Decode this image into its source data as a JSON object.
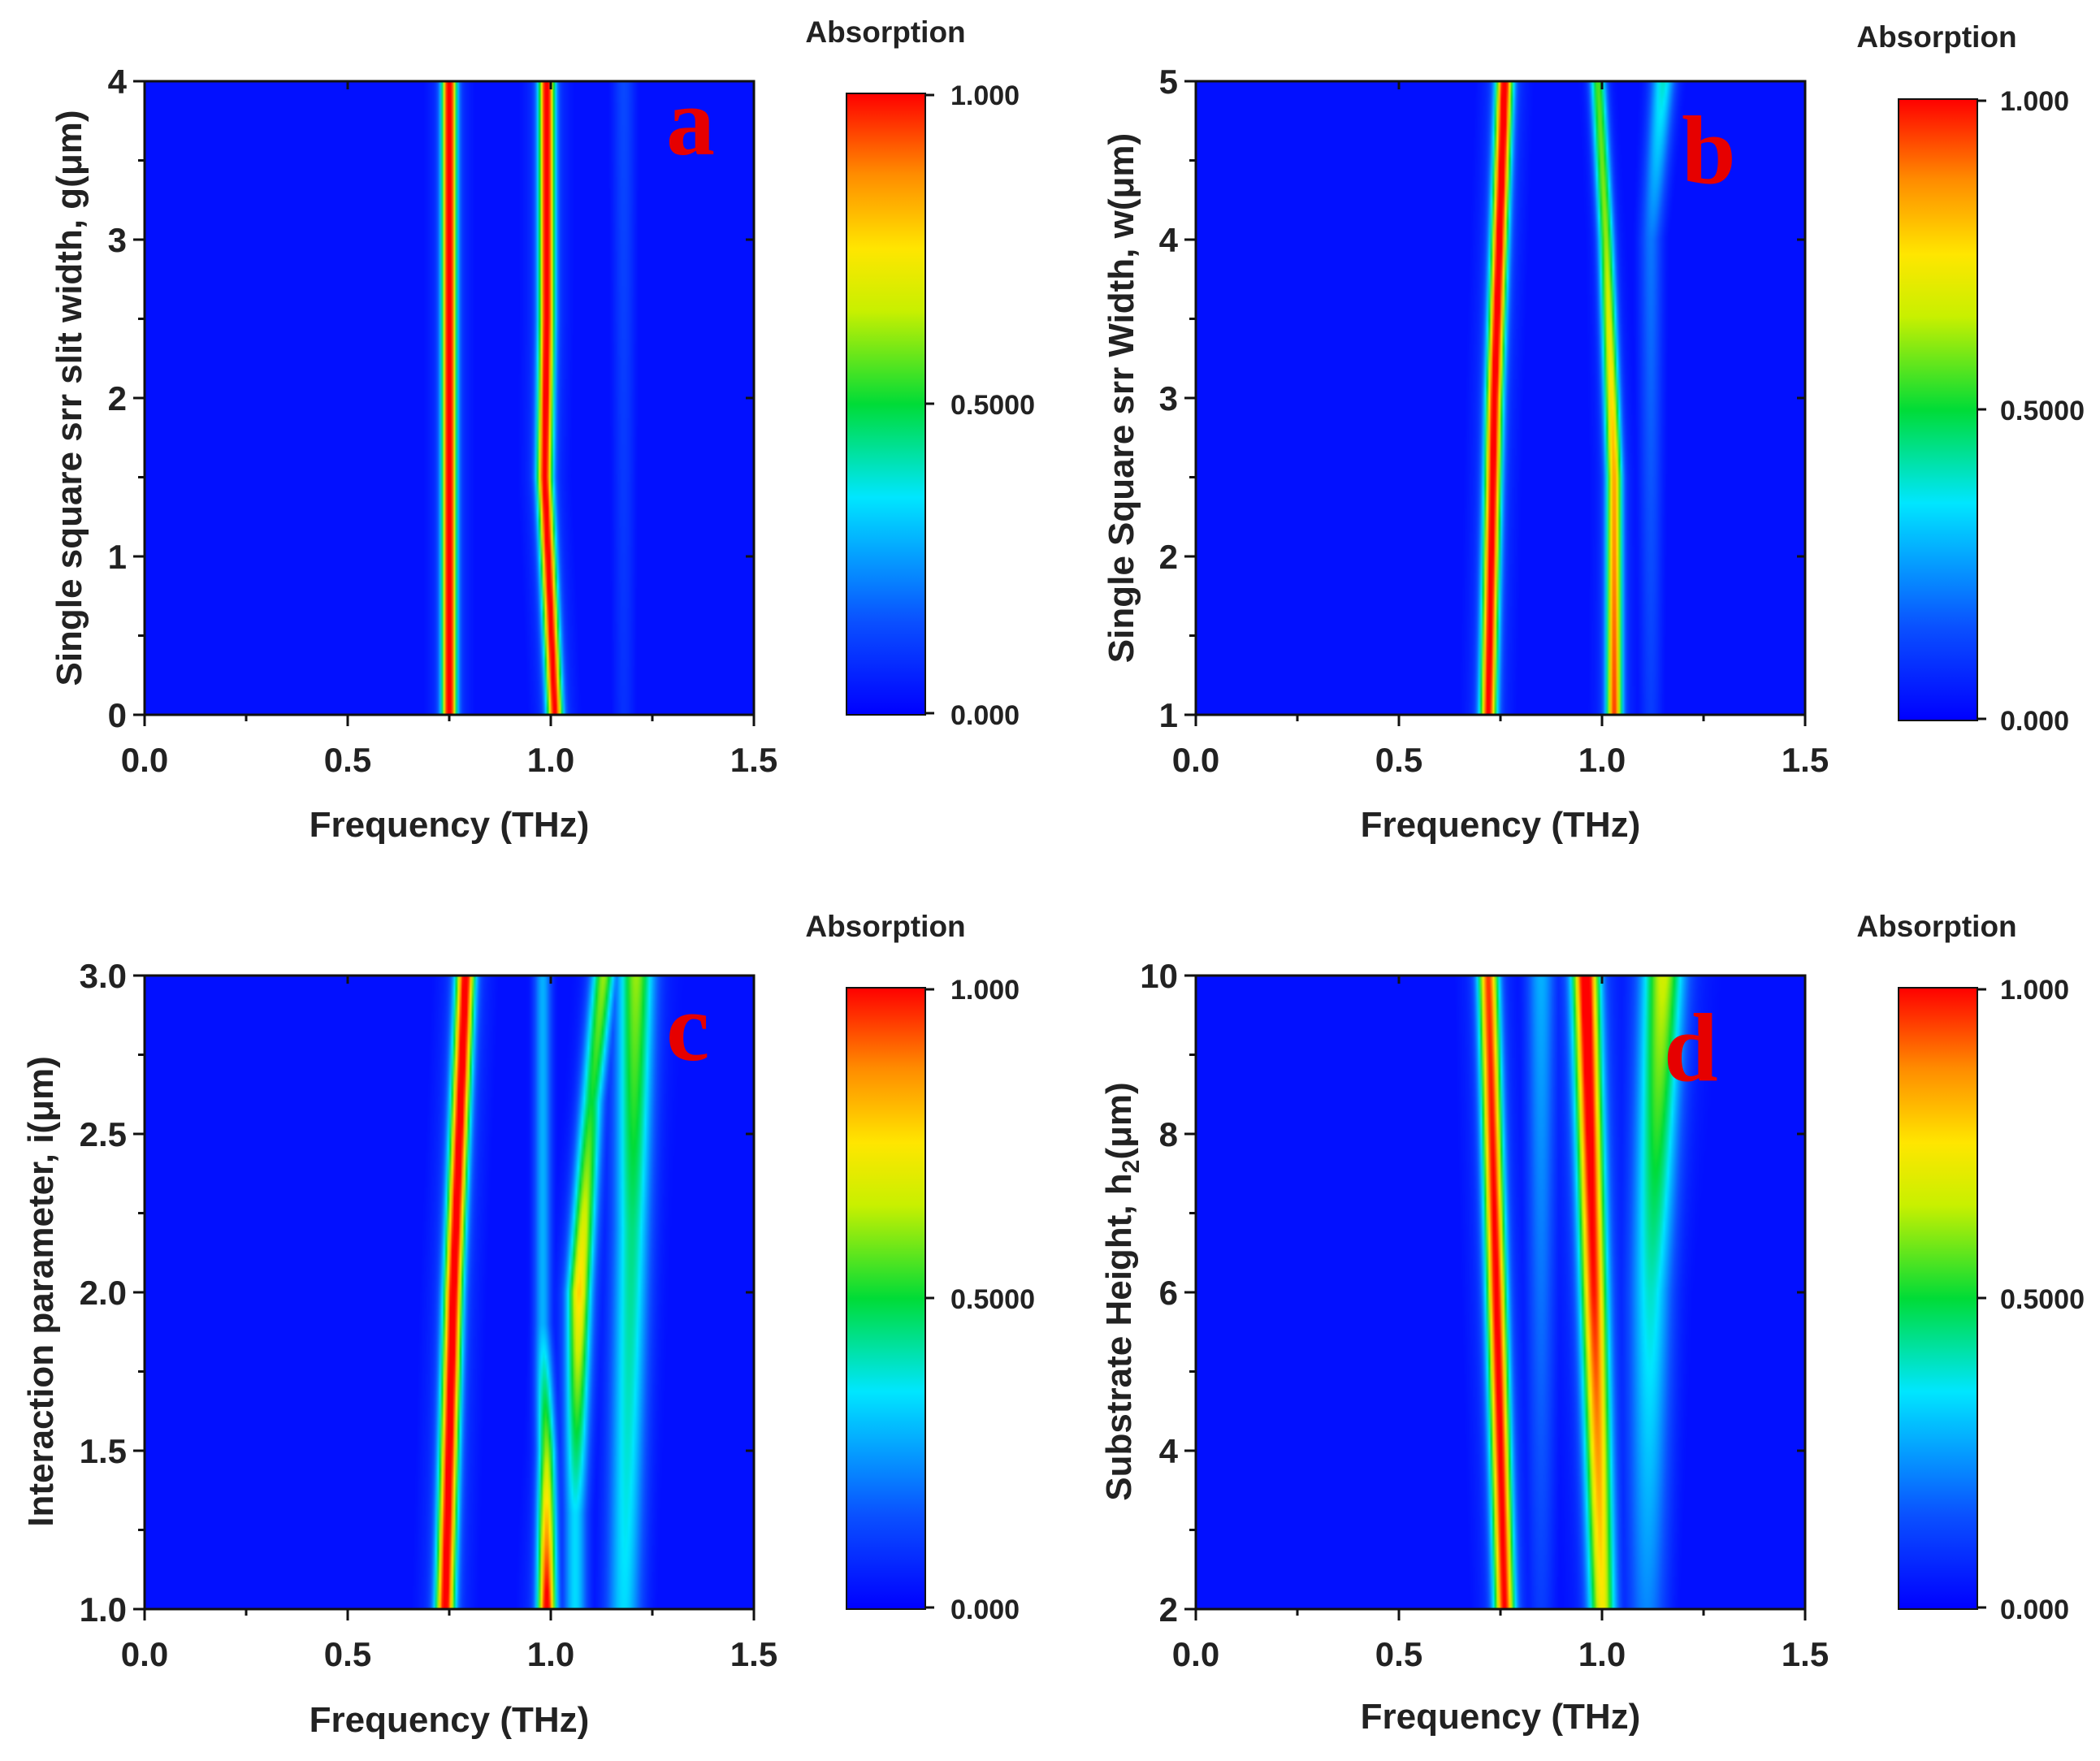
{
  "colorbar_title": "Absorption",
  "colorbar_labels": [
    "1.000",
    "0.5000",
    "0.000"
  ],
  "colorbar_label_values": [
    1.0,
    0.5,
    0.0
  ],
  "colors": {
    "letter": "#e60000",
    "background_field": "#0033ff",
    "colormap": [
      "#0000ff",
      "#0a50ff",
      "#00e6ff",
      "#00dc37",
      "#c8f000",
      "#ffe600",
      "#ff8c00",
      "#ff0000"
    ]
  },
  "chart_data": [
    {
      "type": "heatmap",
      "panel": "a",
      "letter": "a",
      "title": "",
      "xlabel": "Frequency (THz)",
      "ylabel": "Single square srr slit width, g(μm)",
      "xlim": [
        0.0,
        1.5
      ],
      "ylim": [
        0,
        4
      ],
      "xticks": [
        "0.0",
        "0.5",
        "1.0",
        "1.5"
      ],
      "yticks": [
        "0",
        "1",
        "2",
        "3",
        "4"
      ],
      "colorbar": {
        "title": "Absorption",
        "min": 0.0,
        "max": 1.0,
        "labels": [
          "0.000",
          "0.5000",
          "1.000"
        ]
      },
      "bands": [
        {
          "y": [
            0,
            4
          ],
          "x": [
            0.75,
            0.75
          ],
          "width": 0.012,
          "peak": [
            0.99,
            0.99
          ]
        },
        {
          "y": [
            0,
            1.5,
            2.5,
            4
          ],
          "x": [
            1.01,
            0.985,
            0.99,
            0.99
          ],
          "width": 0.013,
          "peak": [
            0.92,
            0.94,
            0.96,
            0.97
          ]
        },
        {
          "y": [
            0,
            4
          ],
          "x": [
            1.18,
            1.18
          ],
          "width": 0.02,
          "peak": [
            0.08,
            0.12
          ]
        }
      ]
    },
    {
      "type": "heatmap",
      "panel": "b",
      "letter": "b",
      "title": "",
      "xlabel": "Frequency (THz)",
      "ylabel": "Single Square srr Width, w(μm)",
      "xlim": [
        0.0,
        1.5
      ],
      "ylim": [
        1,
        5
      ],
      "xticks": [
        "0.0",
        "0.5",
        "1.0",
        "1.5"
      ],
      "yticks": [
        "1",
        "2",
        "3",
        "4",
        "5"
      ],
      "colorbar": {
        "title": "Absorption",
        "min": 0.0,
        "max": 1.0,
        "labels": [
          "0.000",
          "0.5000",
          "1.000"
        ]
      },
      "bands": [
        {
          "y": [
            1,
            3,
            5
          ],
          "x": [
            0.72,
            0.735,
            0.76
          ],
          "width": 0.014,
          "peak": [
            0.92,
            0.95,
            0.97
          ]
        },
        {
          "y": [
            1,
            2.5,
            4,
            5
          ],
          "x": [
            1.03,
            1.03,
            1.01,
            0.99
          ],
          "width": 0.013,
          "peak": [
            0.85,
            0.75,
            0.55,
            0.5
          ]
        },
        {
          "y": [
            1,
            4,
            5
          ],
          "x": [
            1.12,
            1.12,
            1.15
          ],
          "width": 0.02,
          "peak": [
            0.1,
            0.18,
            0.35
          ]
        }
      ]
    },
    {
      "type": "heatmap",
      "panel": "c",
      "letter": "c",
      "title": "",
      "xlabel": "Frequency (THz)",
      "ylabel": "Interaction parameter, i(μm)",
      "xlim": [
        0.0,
        1.5
      ],
      "ylim": [
        1.0,
        3.0
      ],
      "xticks": [
        "0.0",
        "0.5",
        "1.0",
        "1.5"
      ],
      "yticks": [
        "1.0",
        "1.5",
        "2.0",
        "2.5",
        "3.0"
      ],
      "colorbar": {
        "title": "Absorption",
        "min": 0.0,
        "max": 1.0,
        "labels": [
          "0.000",
          "0.5000",
          "1.000"
        ]
      },
      "bands": [
        {
          "y": [
            1.0,
            2.0,
            3.0
          ],
          "x": [
            0.74,
            0.76,
            0.79
          ],
          "width": 0.016,
          "peak": [
            0.95,
            0.96,
            0.95
          ]
        },
        {
          "y": [
            1.0,
            1.5,
            1.9
          ],
          "x": [
            0.99,
            0.99,
            0.98
          ],
          "width": 0.015,
          "peak": [
            0.95,
            0.55,
            0.25
          ]
        },
        {
          "y": [
            1.3,
            2.0,
            2.6,
            3.0
          ],
          "x": [
            1.06,
            1.07,
            1.1,
            1.13
          ],
          "width": 0.02,
          "peak": [
            0.3,
            0.7,
            0.45,
            0.55
          ]
        },
        {
          "y": [
            1.0,
            2.2,
            3.0
          ],
          "x": [
            1.18,
            1.2,
            1.21
          ],
          "width": 0.03,
          "peak": [
            0.3,
            0.4,
            0.55
          ]
        }
      ]
    },
    {
      "type": "heatmap",
      "panel": "d",
      "letter": "d",
      "title": "",
      "xlabel": "Frequency (THz)",
      "ylabel": "Substrate Height, h2(μm)",
      "ylabel_main": "Substrate Height, h",
      "ylabel_sub": "2",
      "ylabel_tail": "(μm)",
      "xlim": [
        0.0,
        1.5
      ],
      "ylim": [
        2,
        10
      ],
      "xticks": [
        "0.0",
        "0.5",
        "1.0",
        "1.5"
      ],
      "yticks": [
        "2",
        "4",
        "6",
        "8",
        "10"
      ],
      "colorbar": {
        "title": "Absorption",
        "min": 0.0,
        "max": 1.0,
        "labels": [
          "0.000",
          "0.5000",
          "1.000"
        ]
      },
      "bands": [
        {
          "y": [
            2,
            6,
            10
          ],
          "x": [
            0.76,
            0.74,
            0.72
          ],
          "width": 0.017,
          "peak": [
            0.9,
            0.92,
            0.85
          ]
        },
        {
          "y": [
            2,
            6,
            10
          ],
          "x": [
            1.0,
            0.98,
            0.96
          ],
          "width": 0.022,
          "peak": [
            0.65,
            0.88,
            0.99
          ]
        },
        {
          "y": [
            2,
            6,
            10
          ],
          "x": [
            1.11,
            1.12,
            1.15
          ],
          "width": 0.035,
          "peak": [
            0.2,
            0.35,
            0.6
          ]
        },
        {
          "y": [
            2,
            10
          ],
          "x": [
            0.85,
            0.85
          ],
          "width": 0.025,
          "peak": [
            0.1,
            0.25
          ]
        }
      ]
    }
  ]
}
